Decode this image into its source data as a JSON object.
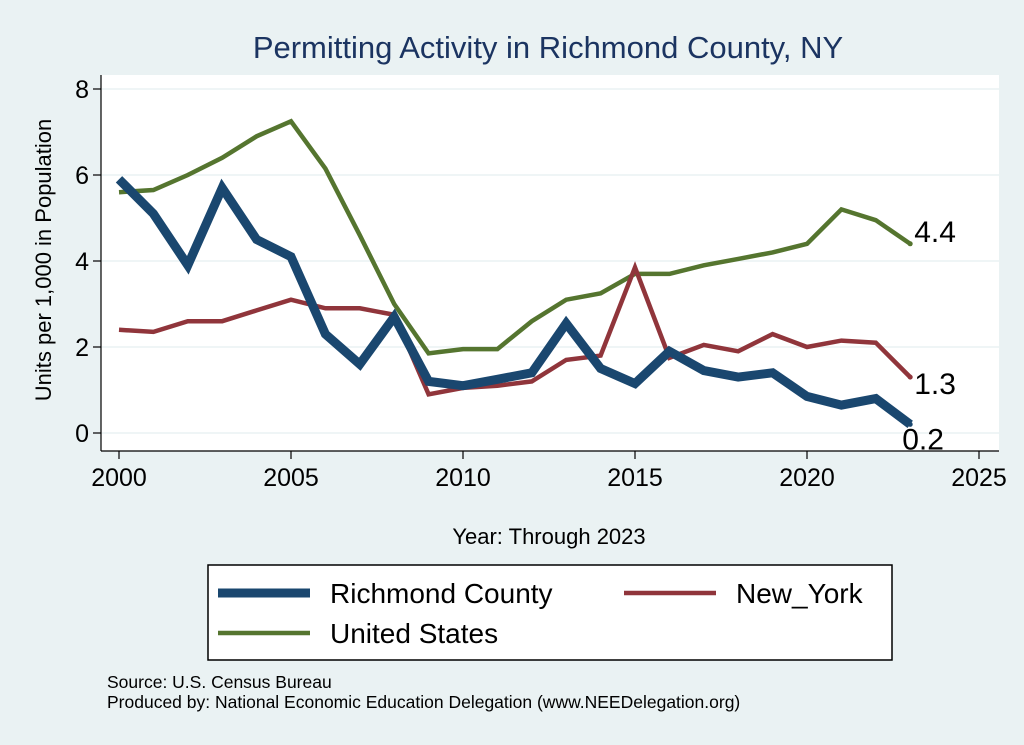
{
  "chart_data": {
    "type": "line",
    "title": "Permitting Activity in Richmond County, NY",
    "xlabel": "Year: Through 2023",
    "ylabel": "Units per 1,000 in Population",
    "xlim": [
      2000,
      2025
    ],
    "ylim": [
      0,
      8
    ],
    "x_ticks": [
      "2000",
      "2005",
      "2010",
      "2015",
      "2020",
      "2025"
    ],
    "y_ticks": [
      "0",
      "2",
      "4",
      "6",
      "8"
    ],
    "grid": "horizontal",
    "legend_position": "bottom",
    "x": [
      2000,
      2001,
      2002,
      2003,
      2004,
      2005,
      2006,
      2007,
      2008,
      2009,
      2010,
      2011,
      2012,
      2013,
      2014,
      2015,
      2016,
      2017,
      2018,
      2019,
      2020,
      2021,
      2022,
      2023
    ],
    "series": [
      {
        "name": "Richmond County",
        "color": "#1a476f",
        "values": [
          5.9,
          5.1,
          3.9,
          5.7,
          4.5,
          4.1,
          2.3,
          1.6,
          2.7,
          1.2,
          1.1,
          1.25,
          1.4,
          2.55,
          1.5,
          1.15,
          1.9,
          1.45,
          1.3,
          1.4,
          0.85,
          0.65,
          0.8,
          0.2
        ],
        "end_label": "0.2"
      },
      {
        "name": "New_York",
        "color": "#90353b",
        "values": [
          2.4,
          2.35,
          2.6,
          2.6,
          2.85,
          3.1,
          2.9,
          2.9,
          2.75,
          0.9,
          1.05,
          1.1,
          1.2,
          1.7,
          1.8,
          3.85,
          1.75,
          2.05,
          1.9,
          2.3,
          2.0,
          2.15,
          2.1,
          1.3
        ],
        "end_label": "1.3"
      },
      {
        "name": "United States",
        "color": "#55752f",
        "values": [
          5.6,
          5.65,
          6.0,
          6.4,
          6.9,
          7.25,
          6.15,
          4.6,
          3.0,
          1.85,
          1.95,
          1.95,
          2.6,
          3.1,
          3.25,
          3.7,
          3.7,
          3.9,
          4.05,
          4.2,
          4.4,
          5.2,
          4.95,
          4.4
        ],
        "end_label": "4.4"
      }
    ],
    "footnotes": [
      "Source: U.S. Census Bureau",
      "Produced by: National Economic Education Delegation (www.NEEDelegation.org)"
    ]
  }
}
